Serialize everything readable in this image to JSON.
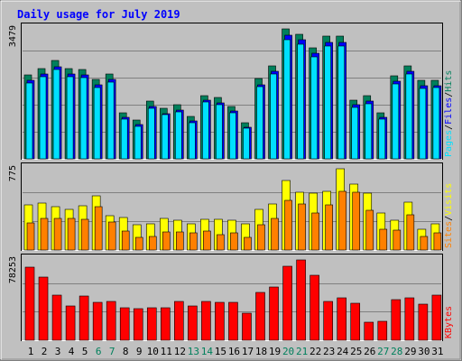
{
  "chart_data": {
    "type": "bar",
    "title": "Daily usage for July 2019",
    "categories": [
      "1",
      "2",
      "3",
      "4",
      "5",
      "6",
      "7",
      "8",
      "9",
      "10",
      "11",
      "12",
      "13",
      "14",
      "15",
      "16",
      "17",
      "18",
      "19",
      "20",
      "21",
      "22",
      "23",
      "24",
      "25",
      "26",
      "27",
      "28",
      "29",
      "30",
      "31"
    ],
    "weekend_days": [
      "6",
      "7",
      "13",
      "14",
      "20",
      "21",
      "27",
      "28"
    ],
    "panels": [
      {
        "id": "top",
        "max_label": "3479",
        "legend": [
          "Pages",
          "Files",
          "Hits"
        ],
        "series": [
          {
            "name": "Hits",
            "color": "#00805c",
            "values": [
              2240,
              2420,
              2630,
              2410,
              2400,
              2130,
              2280,
              1230,
              1050,
              1540,
              1350,
              1440,
              1140,
              1700,
              1650,
              1410,
              970,
              2140,
              2480,
              3479,
              3340,
              2960,
              3280,
              3280,
              1580,
              1680,
              1240,
              2220,
              2480,
              2090,
              2100
            ]
          },
          {
            "name": "Files",
            "color": "#0000ff",
            "values": [
              2090,
              2270,
              2470,
              2260,
              2250,
              1980,
              2130,
              1100,
              920,
              1400,
              1220,
              1300,
              1010,
              1560,
              1500,
              1280,
              840,
              1990,
              2340,
              3310,
              3180,
              2820,
              3120,
              3120,
              1440,
              1540,
              1100,
              2080,
              2340,
              1950,
              1960
            ]
          },
          {
            "name": "Pages",
            "color": "#00e0ff",
            "values": [
              2030,
              2200,
              2390,
              2190,
              2180,
              1920,
              2060,
              1060,
              880,
              1350,
              1180,
              1260,
              970,
              1520,
              1460,
              1240,
              810,
              1930,
              2280,
              3200,
              3080,
              2720,
              3020,
              3020,
              1380,
              1480,
              1060,
              2010,
              2260,
              1890,
              1900
            ]
          }
        ]
      },
      {
        "id": "middle",
        "max_label": "775",
        "legend": [
          "Sites",
          "Visits"
        ],
        "series": [
          {
            "name": "Visits",
            "color": "#ffff00",
            "values": [
              430,
              450,
              410,
              390,
              420,
              520,
              330,
              310,
              240,
              250,
              300,
              280,
              250,
              290,
              290,
              280,
              250,
              390,
              440,
              660,
              550,
              540,
              560,
              775,
              630,
              540,
              350,
              280,
              460,
              200,
              250
            ]
          },
          {
            "name": "Sites",
            "color": "#ff8000",
            "values": [
              260,
              300,
              300,
              300,
              290,
              410,
              270,
              180,
              120,
              130,
              170,
              170,
              160,
              180,
              150,
              160,
              120,
              240,
              300,
              470,
              440,
              350,
              430,
              560,
              550,
              380,
              200,
              190,
              340,
              130,
              160
            ]
          }
        ]
      },
      {
        "id": "bottom",
        "max_label": "78253",
        "legend": [
          "KBytes"
        ],
        "series": [
          {
            "name": "KBytes",
            "color": "#ff0000",
            "values": [
              70900,
              61300,
              43700,
              33400,
              43200,
              37000,
              37500,
              31600,
              30800,
              31300,
              31800,
              38200,
              33400,
              38200,
              36500,
              36800,
              26100,
              46400,
              52000,
              71900,
              78253,
              63700,
              37600,
              41100,
              36400,
              17700,
              18400,
              40000,
              41100,
              35300,
              43800
            ]
          }
        ]
      }
    ],
    "colors": {
      "background": "#c0c0c0",
      "outer_border": "#808080",
      "title": "#0000ff",
      "weekday_label": "#000000",
      "weekend_label": "#00805c",
      "legend_sep": "#000000"
    }
  }
}
